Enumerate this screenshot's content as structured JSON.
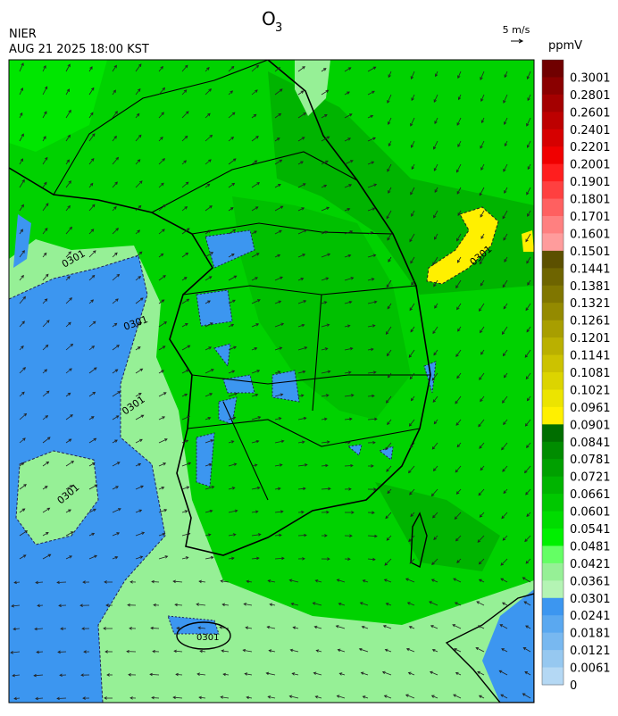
{
  "header": {
    "title": "O",
    "title_subscript": "3",
    "agency": "NIER",
    "timestamp": "AUG 21 2025 18:00 KST",
    "wind_scale": "5 m/s"
  },
  "colorbar": {
    "unit": "ppmV",
    "labels": [
      "0.3001",
      "0.2801",
      "0.2601",
      "0.2401",
      "0.2201",
      "0.2001",
      "0.1901",
      "0.1801",
      "0.1701",
      "0.1601",
      "0.1501",
      "0.1441",
      "0.1381",
      "0.1321",
      "0.1261",
      "0.1201",
      "0.1141",
      "0.1081",
      "0.1021",
      "0.0961",
      "0.0901",
      "0.0841",
      "0.0781",
      "0.0721",
      "0.0661",
      "0.0601",
      "0.0541",
      "0.0481",
      "0.0421",
      "0.0361",
      "0.0301",
      "0.0241",
      "0.0181",
      "0.0121",
      "0.0061",
      "0"
    ],
    "colors": [
      "#700000",
      "#8a0000",
      "#a40000",
      "#bd0000",
      "#d60000",
      "#f00000",
      "#ff1e1e",
      "#ff4040",
      "#ff6060",
      "#ff8080",
      "#ff9c9c",
      "#5c5000",
      "#6e6400",
      "#807600",
      "#948a00",
      "#a89e00",
      "#bab000",
      "#ccc200",
      "#dcd400",
      "#ece400",
      "#fff000",
      "#006e00",
      "#008c00",
      "#00a000",
      "#00b400",
      "#00c800",
      "#00dc00",
      "#00f000",
      "#64ff64",
      "#96f096",
      "#b4f4b4",
      "#3c96f0",
      "#5aa8f0",
      "#78b8f0",
      "#96c8f0",
      "#b4d8f4"
    ]
  },
  "map": {
    "contour_labels": [
      "0301",
      "0301",
      "0301",
      "0301",
      "0301",
      "0301"
    ]
  }
}
